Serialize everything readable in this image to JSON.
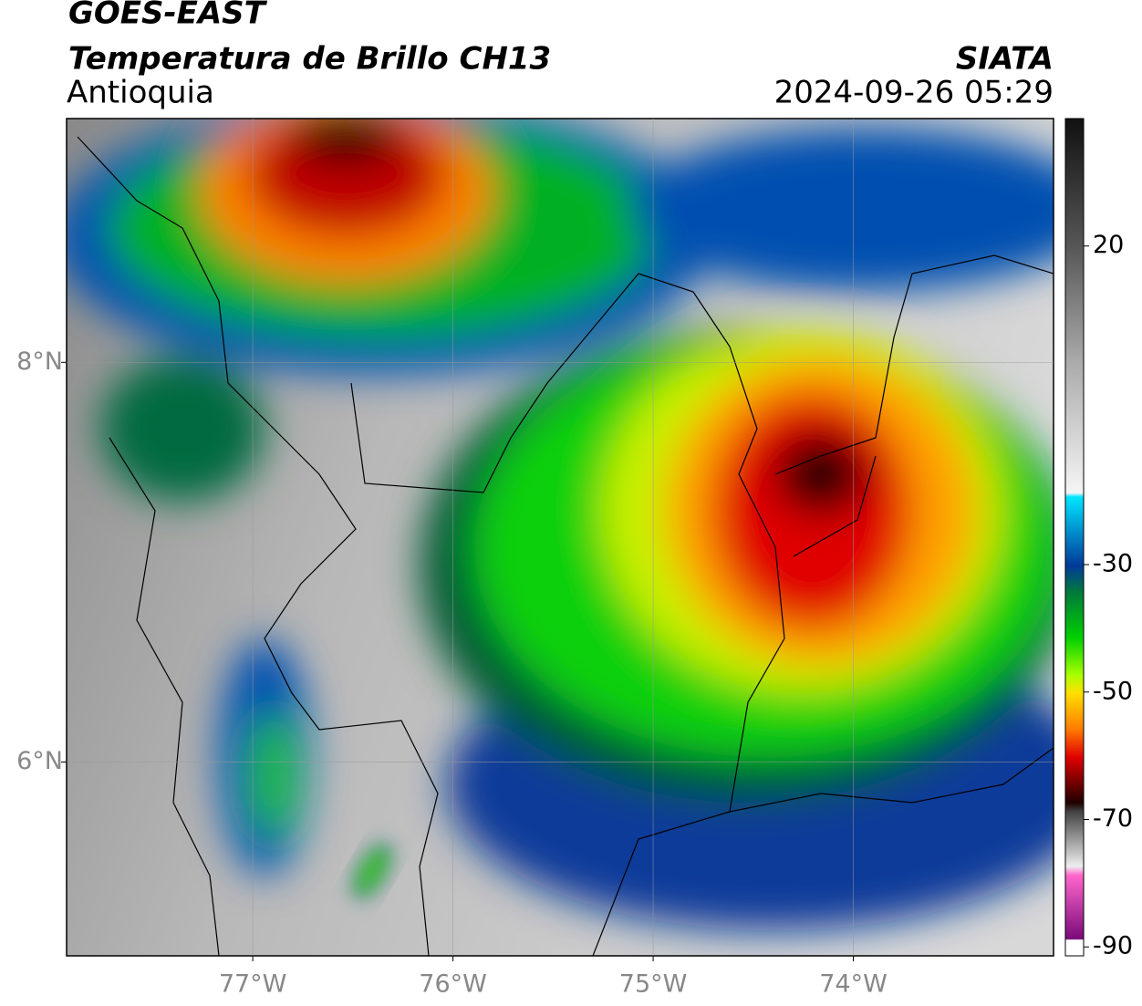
{
  "header": {
    "satellite": "GOES-EAST",
    "product": "Temperatura de Brillo CH13",
    "region": "Antioquia",
    "source": "SIATA",
    "timestamp": "2024-09-26 05:29"
  },
  "map": {
    "xlim": [
      -77.93,
      -73.0
    ],
    "ylim": [
      5.03,
      9.22
    ],
    "xticks": [
      {
        "value": -77,
        "label": "77°W"
      },
      {
        "value": -76,
        "label": "76°W"
      },
      {
        "value": -75,
        "label": "75°W"
      },
      {
        "value": -74,
        "label": "74°W"
      }
    ],
    "yticks": [
      {
        "value": 6,
        "label": "6°N"
      },
      {
        "value": 8,
        "label": "8°N"
      }
    ],
    "grid": true
  },
  "colorbar": {
    "lim": [
      -91.4,
      40
    ],
    "ticks": [
      20,
      -30,
      -50,
      -70,
      -90
    ]
  }
}
